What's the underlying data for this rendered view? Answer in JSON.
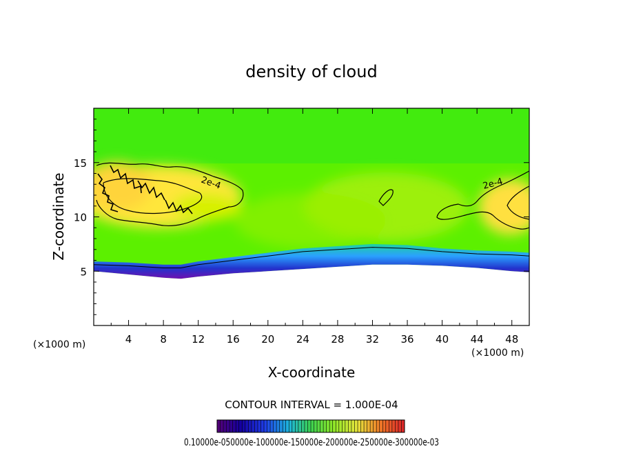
{
  "chart_data": {
    "type": "heatmap",
    "title": "density of cloud",
    "xlabel": "X-coordinate",
    "ylabel": "Z-coordinate",
    "x_unit": "(×1000 m)",
    "y_unit": "(×1000 m)",
    "xlim": [
      0,
      50
    ],
    "ylim": [
      0,
      20
    ],
    "xticks": [
      4,
      8,
      12,
      16,
      20,
      24,
      28,
      32,
      36,
      40,
      44,
      48
    ],
    "yticks": [
      5,
      10,
      15
    ],
    "contour_interval_label": "CONTOUR INTERVAL = 1.000E-04",
    "contour_labels": [
      {
        "text": "2e-4",
        "x": 14.5,
        "z": 13.2
      },
      {
        "text": "2e-4",
        "x": 46.0,
        "z": 12.8
      }
    ],
    "colorbar_labels": "0.10000e-050000e-100000e-150000e-200000e-250000e-300000e-03",
    "field_description_values": {
      "cloud_base_z": [
        5.0,
        4.7,
        4.4,
        4.3,
        4.5,
        4.8,
        5.0,
        5.2,
        5.4,
        5.6,
        5.6,
        5.5,
        5.3,
        5.0,
        4.9
      ],
      "cloud_base_x": [
        0,
        4,
        8,
        10,
        12,
        16,
        20,
        24,
        28,
        32,
        36,
        40,
        44,
        48,
        50
      ],
      "contour_1e4_z": [
        5.6,
        5.5,
        5.3,
        5.3,
        5.6,
        6.0,
        6.4,
        6.8,
        7.0,
        7.2,
        7.1,
        6.8,
        6.6,
        6.5,
        6.4
      ]
    }
  }
}
